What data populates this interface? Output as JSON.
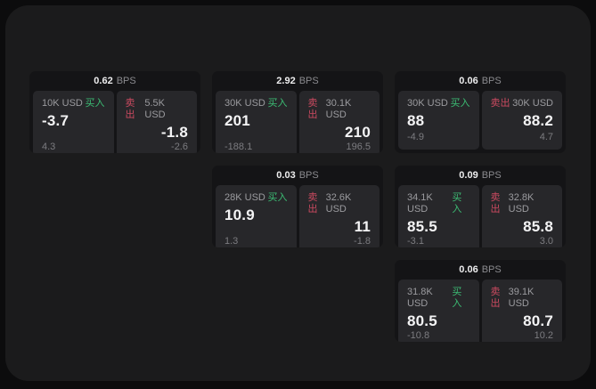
{
  "labels": {
    "bps_unit": "BPS",
    "buy": "买入",
    "sell": "卖出"
  },
  "colors": {
    "buy_accent": "#3cbd74",
    "sell_accent": "#cb4a60",
    "frame_bg": "#1b1b1c",
    "card_bg": "#141416",
    "panel_bg": "#27272a"
  },
  "cards": [
    {
      "row": 1,
      "col": 1,
      "bps": "0.62",
      "buy": {
        "notional": "10K USD",
        "value": "-3.7",
        "sub": "4.3"
      },
      "sell": {
        "notional": "5.5K USD",
        "value": "-1.8",
        "sub": "-2.6"
      }
    },
    {
      "row": 1,
      "col": 2,
      "bps": "2.92",
      "buy": {
        "notional": "30K USD",
        "value": "201",
        "sub": "-188.1"
      },
      "sell": {
        "notional": "30.1K USD",
        "value": "210",
        "sub": "196.5"
      }
    },
    {
      "row": 1,
      "col": 3,
      "bps": "0.06",
      "buy": {
        "notional": "30K USD",
        "value": "88",
        "sub": "-4.9"
      },
      "sell": {
        "notional": "30K USD",
        "value": "88.2",
        "sub": "4.7"
      }
    },
    {
      "row": 2,
      "col": 2,
      "bps": "0.03",
      "buy": {
        "notional": "28K USD",
        "value": "10.9",
        "sub": "1.3"
      },
      "sell": {
        "notional": "32.6K USD",
        "value": "11",
        "sub": "-1.8"
      }
    },
    {
      "row": 2,
      "col": 3,
      "bps": "0.09",
      "buy": {
        "notional": "34.1K USD",
        "value": "85.5",
        "sub": "-3.1"
      },
      "sell": {
        "notional": "32.8K USD",
        "value": "85.8",
        "sub": "3.0"
      }
    },
    {
      "row": 3,
      "col": 3,
      "bps": "0.06",
      "buy": {
        "notional": "31.8K USD",
        "value": "80.5",
        "sub": "-10.8"
      },
      "sell": {
        "notional": "39.1K USD",
        "value": "80.7",
        "sub": "10.2"
      }
    }
  ]
}
